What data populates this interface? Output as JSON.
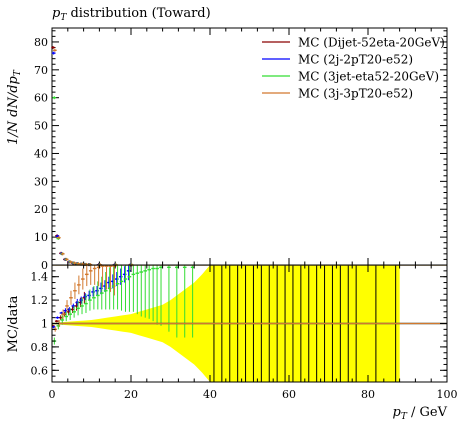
{
  "chart_data": [
    {
      "type": "line",
      "title": "p_T distribution (Toward)",
      "ylabel": "1/N dN/dp_T",
      "ylim": [
        0,
        85
      ],
      "yticks": [
        0,
        10,
        20,
        30,
        40,
        50,
        60,
        70,
        80
      ],
      "xlim": [
        0,
        100
      ],
      "grid": false,
      "legend_position": "top-right",
      "series": [
        {
          "name": "MC (Dijet-52eta-20GeV)",
          "color": "#8b0000",
          "x": [
            0.5,
            1.5,
            2.5,
            3.5,
            4.5,
            5.5,
            6.5,
            7.5,
            8.5,
            9.5,
            12,
            16,
            20
          ],
          "y": [
            78,
            10.5,
            4.2,
            2.0,
            1.1,
            0.7,
            0.45,
            0.3,
            0.2,
            0.14,
            0.07,
            0.03,
            0.01
          ]
        },
        {
          "name": "MC (2j-2pT20-e52)",
          "color": "#0000ff",
          "x": [
            0.5,
            1.5,
            2.5,
            3.5,
            4.5,
            5.5,
            6.5,
            7.5,
            8.5,
            9.5,
            12,
            16,
            20
          ],
          "y": [
            76,
            10.3,
            4.1,
            2.0,
            1.1,
            0.7,
            0.45,
            0.3,
            0.2,
            0.14,
            0.07,
            0.03,
            0.01
          ]
        },
        {
          "name": "MC (3jet-eta52-20GeV)",
          "color": "#33dd33",
          "x": [
            0.5,
            1.5,
            2.5,
            3.5,
            4.5,
            5.5,
            6.5,
            7.5,
            8.5,
            9.5,
            12,
            16,
            20
          ],
          "y": [
            60,
            9.5,
            4.0,
            2.0,
            1.1,
            0.7,
            0.45,
            0.3,
            0.2,
            0.14,
            0.07,
            0.03,
            0.01
          ]
        },
        {
          "name": "MC (3j-3pT20-e52)",
          "color": "#d2782d",
          "x": [
            0.5,
            1.5,
            2.5,
            3.5,
            4.5,
            5.5,
            6.5,
            7.5,
            8.5,
            9.5,
            12,
            16,
            20
          ],
          "y": [
            77,
            9.8,
            4.0,
            2.0,
            1.1,
            0.7,
            0.45,
            0.3,
            0.2,
            0.14,
            0.07,
            0.03,
            0.01
          ]
        }
      ]
    },
    {
      "type": "line",
      "ylabel": "MC/data",
      "xlabel": "p_T / GeV",
      "xlim": [
        0,
        100
      ],
      "xticks": [
        0,
        20,
        40,
        60,
        80,
        100
      ],
      "ylim": [
        0.5,
        1.5
      ],
      "yticks": [
        0.6,
        0.8,
        1,
        1.2,
        1.4
      ],
      "reference_line": 1,
      "uncertainty_band_color": "#ffff00",
      "band_x": [
        0,
        2,
        4,
        6,
        8,
        10,
        12,
        14,
        16,
        18,
        20,
        22,
        24,
        26,
        28,
        30,
        32,
        34,
        36,
        38,
        40,
        44,
        48,
        52,
        56,
        60,
        64,
        68,
        72,
        76,
        80,
        84,
        88
      ],
      "band_halfwidth": [
        0.005,
        0.01,
        0.015,
        0.02,
        0.025,
        0.03,
        0.04,
        0.05,
        0.06,
        0.07,
        0.08,
        0.1,
        0.12,
        0.14,
        0.16,
        0.2,
        0.25,
        0.3,
        0.35,
        0.42,
        0.5,
        0.6,
        0.6,
        0.6,
        0.6,
        0.6,
        0.6,
        0.6,
        0.6,
        0.6,
        0.6,
        0.6,
        0.6
      ],
      "full_band_ranges": [
        [
          41,
          41.6
        ],
        [
          43,
          43.6
        ],
        [
          45,
          45.6
        ],
        [
          47,
          47.6
        ],
        [
          49,
          49.6
        ],
        [
          51,
          51.6
        ],
        [
          53,
          53.6
        ],
        [
          55,
          55.6
        ],
        [
          57,
          57.6
        ],
        [
          59,
          59.6
        ],
        [
          61,
          61.6
        ],
        [
          63,
          63.6
        ],
        [
          65,
          65.6
        ],
        [
          67,
          67.6
        ],
        [
          69,
          69.6
        ],
        [
          71,
          71.6
        ],
        [
          73,
          73.6
        ],
        [
          75,
          75.6
        ],
        [
          77,
          77.6
        ],
        [
          82,
          84
        ],
        [
          87,
          88
        ]
      ],
      "series": [
        {
          "name": "MC (Dijet-52eta-20GeV)",
          "color": "#8b0000",
          "x": [
            0.5,
            1.5,
            2.5,
            3.5,
            4.5,
            5.5,
            6.5,
            7.5,
            8.5
          ],
          "y": [
            0.98,
            1.02,
            1.05,
            1.08,
            1.1,
            1.12,
            1.15,
            1.18,
            1.22
          ],
          "err": [
            0.01,
            0.01,
            0.02,
            0.02,
            0.03,
            0.03,
            0.04,
            0.04,
            0.05
          ]
        },
        {
          "name": "MC (2j-2pT20-e52)",
          "color": "#0000ff",
          "x": [
            0.5,
            1.5,
            2.5,
            3.5,
            4.5,
            5.5,
            6.5,
            7.5,
            8.5,
            9.5,
            10.5,
            11.5,
            12.5,
            13.5,
            14.5,
            15.5,
            16.5,
            17.5,
            18.5,
            19.5
          ],
          "y": [
            0.97,
            1.05,
            1.09,
            1.11,
            1.12,
            1.15,
            1.18,
            1.2,
            1.23,
            1.24,
            1.27,
            1.28,
            1.3,
            1.32,
            1.35,
            1.36,
            1.38,
            1.4,
            1.42,
            1.45
          ],
          "err": [
            0.01,
            0.01,
            0.01,
            0.02,
            0.02,
            0.02,
            0.03,
            0.03,
            0.03,
            0.04,
            0.04,
            0.04,
            0.05,
            0.05,
            0.05,
            0.06,
            0.06,
            0.07,
            0.07,
            0.08
          ]
        },
        {
          "name": "MC (3jet-eta52-20GeV)",
          "color": "#33dd33",
          "x": [
            0.5,
            1.5,
            2.5,
            3.5,
            4.5,
            5.5,
            6.5,
            7.5,
            8.5,
            9.5,
            10.5,
            11.5,
            12.5,
            13.5,
            14.5,
            15.5,
            16.5,
            17.5,
            18.5,
            19.5,
            20.5,
            21.5,
            22.5,
            23.5,
            24.5,
            25.5,
            26.5,
            27.5,
            29.5,
            31.5,
            33.5,
            35.5
          ],
          "y": [
            0.85,
            0.98,
            1.03,
            1.06,
            1.08,
            1.1,
            1.13,
            1.15,
            1.17,
            1.2,
            1.22,
            1.24,
            1.26,
            1.28,
            1.3,
            1.32,
            1.34,
            1.36,
            1.38,
            1.4,
            1.42,
            1.43,
            1.44,
            1.45,
            1.46,
            1.47,
            1.47,
            1.48,
            1.48,
            1.48,
            1.48,
            1.48
          ],
          "err": [
            0.03,
            0.03,
            0.04,
            0.04,
            0.05,
            0.05,
            0.06,
            0.07,
            0.08,
            0.09,
            0.1,
            0.12,
            0.14,
            0.16,
            0.18,
            0.2,
            0.22,
            0.25,
            0.28,
            0.3,
            0.32,
            0.35,
            0.38,
            0.4,
            0.42,
            0.45,
            0.48,
            0.5,
            0.55,
            0.6,
            0.6,
            0.6
          ]
        },
        {
          "name": "MC (3j-3pT20-e52)",
          "color": "#d2782d",
          "x": [
            0.5,
            1.5,
            2.5,
            3.5,
            4.5,
            5.5,
            6.5,
            7.5,
            8.5,
            9.5,
            10.5,
            11.5,
            12.5,
            13.5,
            14.5,
            15.5
          ],
          "y": [
            0.95,
            1.0,
            1.08,
            1.15,
            1.22,
            1.28,
            1.33,
            1.38,
            1.42,
            1.45,
            1.47,
            1.48,
            1.49,
            1.49,
            1.49,
            1.49
          ],
          "err": [
            0.02,
            0.03,
            0.04,
            0.05,
            0.06,
            0.07,
            0.08,
            0.09,
            0.1,
            0.12,
            0.14,
            0.16,
            0.18,
            0.2,
            0.22,
            0.25
          ]
        }
      ]
    }
  ],
  "labels": {
    "title_main": "p",
    "title_sub": "T",
    "title_rest": " distribution (Toward)",
    "ylabel_top": "1/N dN/dp",
    "ylabel_top_sub": "T",
    "ylabel_bottom": "MC/data",
    "xlabel_main": "p",
    "xlabel_sub": "T",
    "xlabel_rest": "  / GeV"
  }
}
